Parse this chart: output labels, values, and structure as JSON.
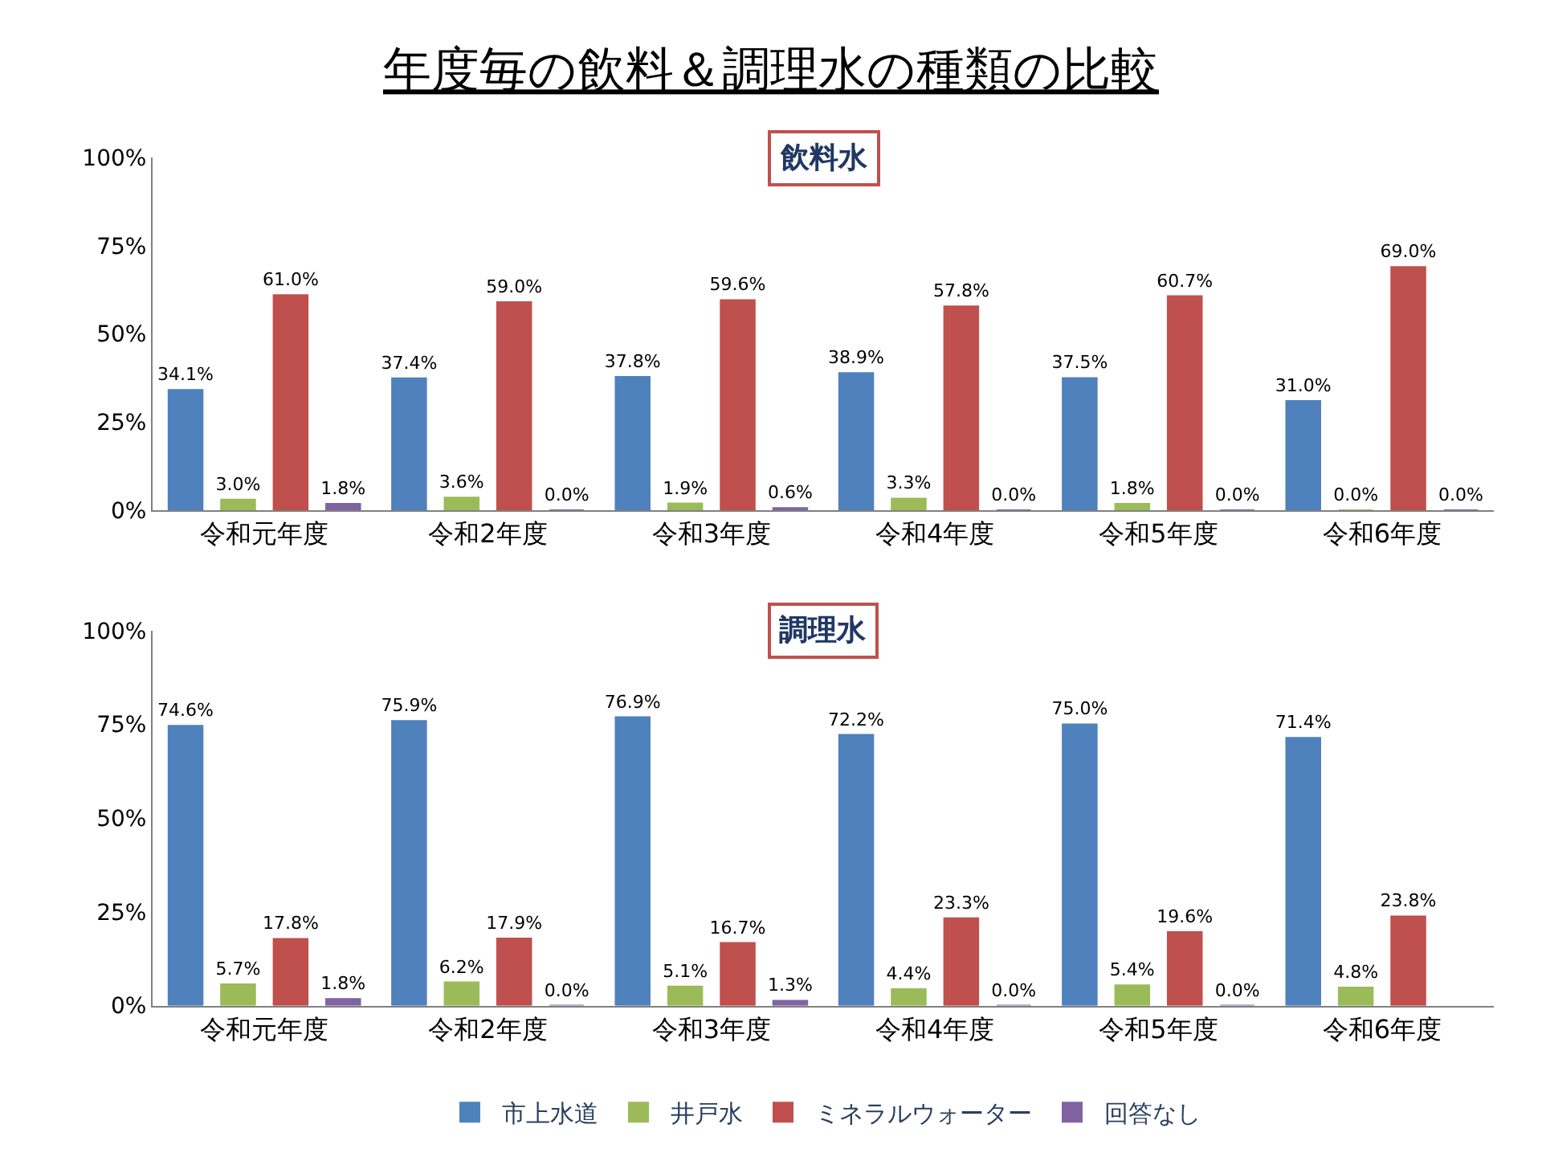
{
  "chart_data": [
    {
      "type": "bar",
      "title": "年度毎の飲料＆調理水の種類の比較",
      "subtitle": "飲料水",
      "categories": [
        "令和元年度",
        "令和2年度",
        "令和3年度",
        "令和4年度",
        "令和5年度",
        "令和6年度"
      ],
      "series": [
        {
          "color": "#4f81bd",
          "values": [
            34.1,
            37.4,
            37.8,
            38.9,
            37.5,
            31.0
          ],
          "value_labels": [
            "34.1%",
            "37.4%",
            "37.8%",
            "38.9%",
            "37.5%",
            "31.0%"
          ]
        },
        {
          "color": "#9bbb59",
          "values": [
            3.0,
            3.6,
            1.9,
            3.3,
            1.8,
            0.0
          ],
          "value_labels": [
            "3.0%",
            "3.6%",
            "1.9%",
            "3.3%",
            "1.8%",
            "0.0%"
          ]
        },
        {
          "color": "#c0504d",
          "values": [
            61.0,
            59.0,
            59.6,
            57.8,
            60.7,
            69.0
          ],
          "value_labels": [
            "61.0%",
            "59.0%",
            "59.6%",
            "57.8%",
            "60.7%",
            "69.0%"
          ]
        },
        {
          "color": "#8064a2",
          "values": [
            1.8,
            0.0,
            0.6,
            0.0,
            0.0,
            0.0
          ],
          "value_labels": [
            "1.8%",
            "0.0%",
            "0.6%",
            "0.0%",
            "0.0%",
            "0.0%"
          ]
        }
      ],
      "ylim": [
        0,
        100
      ],
      "yticks": [
        {
          "value": 0,
          "label": "0%"
        },
        {
          "value": 25,
          "label": "25%"
        },
        {
          "value": 50,
          "label": "50%"
        },
        {
          "value": 75,
          "label": "75%"
        },
        {
          "value": 100,
          "label": "100%"
        }
      ],
      "grid": false,
      "legend": false
    },
    {
      "type": "bar",
      "title": "調理水",
      "categories": [
        "令和元年度",
        "令和2年度",
        "令和3年度",
        "令和4年度",
        "令和5年度",
        "令和6年度"
      ],
      "series": [
        {
          "name": "市上水道",
          "color": "#4f81bd",
          "values": [
            74.6,
            75.9,
            76.9,
            72.2,
            75.0,
            71.4
          ],
          "value_labels": [
            "74.6%",
            "75.9%",
            "76.9%",
            "72.2%",
            "75.0%",
            "71.4%"
          ]
        },
        {
          "name": "井戸水",
          "color": "#9bbb59",
          "values": [
            5.7,
            6.2,
            5.1,
            4.4,
            5.4,
            4.8
          ],
          "value_labels": [
            "5.7%",
            "6.2%",
            "5.1%",
            "4.4%",
            "5.4%",
            "4.8%"
          ]
        },
        {
          "name": "ミネラルウォーター",
          "color": "#c0504d",
          "values": [
            17.8,
            17.9,
            16.7,
            23.3,
            19.6,
            23.8
          ],
          "value_labels": [
            "17.8%",
            "17.9%",
            "16.7%",
            "23.3%",
            "19.6%",
            "23.8%"
          ]
        },
        {
          "name": "回答なし",
          "color": "#8064a2",
          "values": [
            1.8,
            0.0,
            1.3,
            0.0,
            0.0,
            null
          ],
          "value_labels": [
            "1.8%",
            "0.0%",
            "1.3%",
            "0.0%",
            "0.0%",
            null
          ]
        }
      ],
      "ylim": [
        0,
        100
      ],
      "yticks": [
        {
          "value": 0,
          "label": "0%"
        },
        {
          "value": 25,
          "label": "25%"
        },
        {
          "value": 50,
          "label": "50%"
        },
        {
          "value": 75,
          "label": "75%"
        },
        {
          "value": 100,
          "label": "100%"
        }
      ],
      "grid": false,
      "legend": "bottom"
    }
  ]
}
